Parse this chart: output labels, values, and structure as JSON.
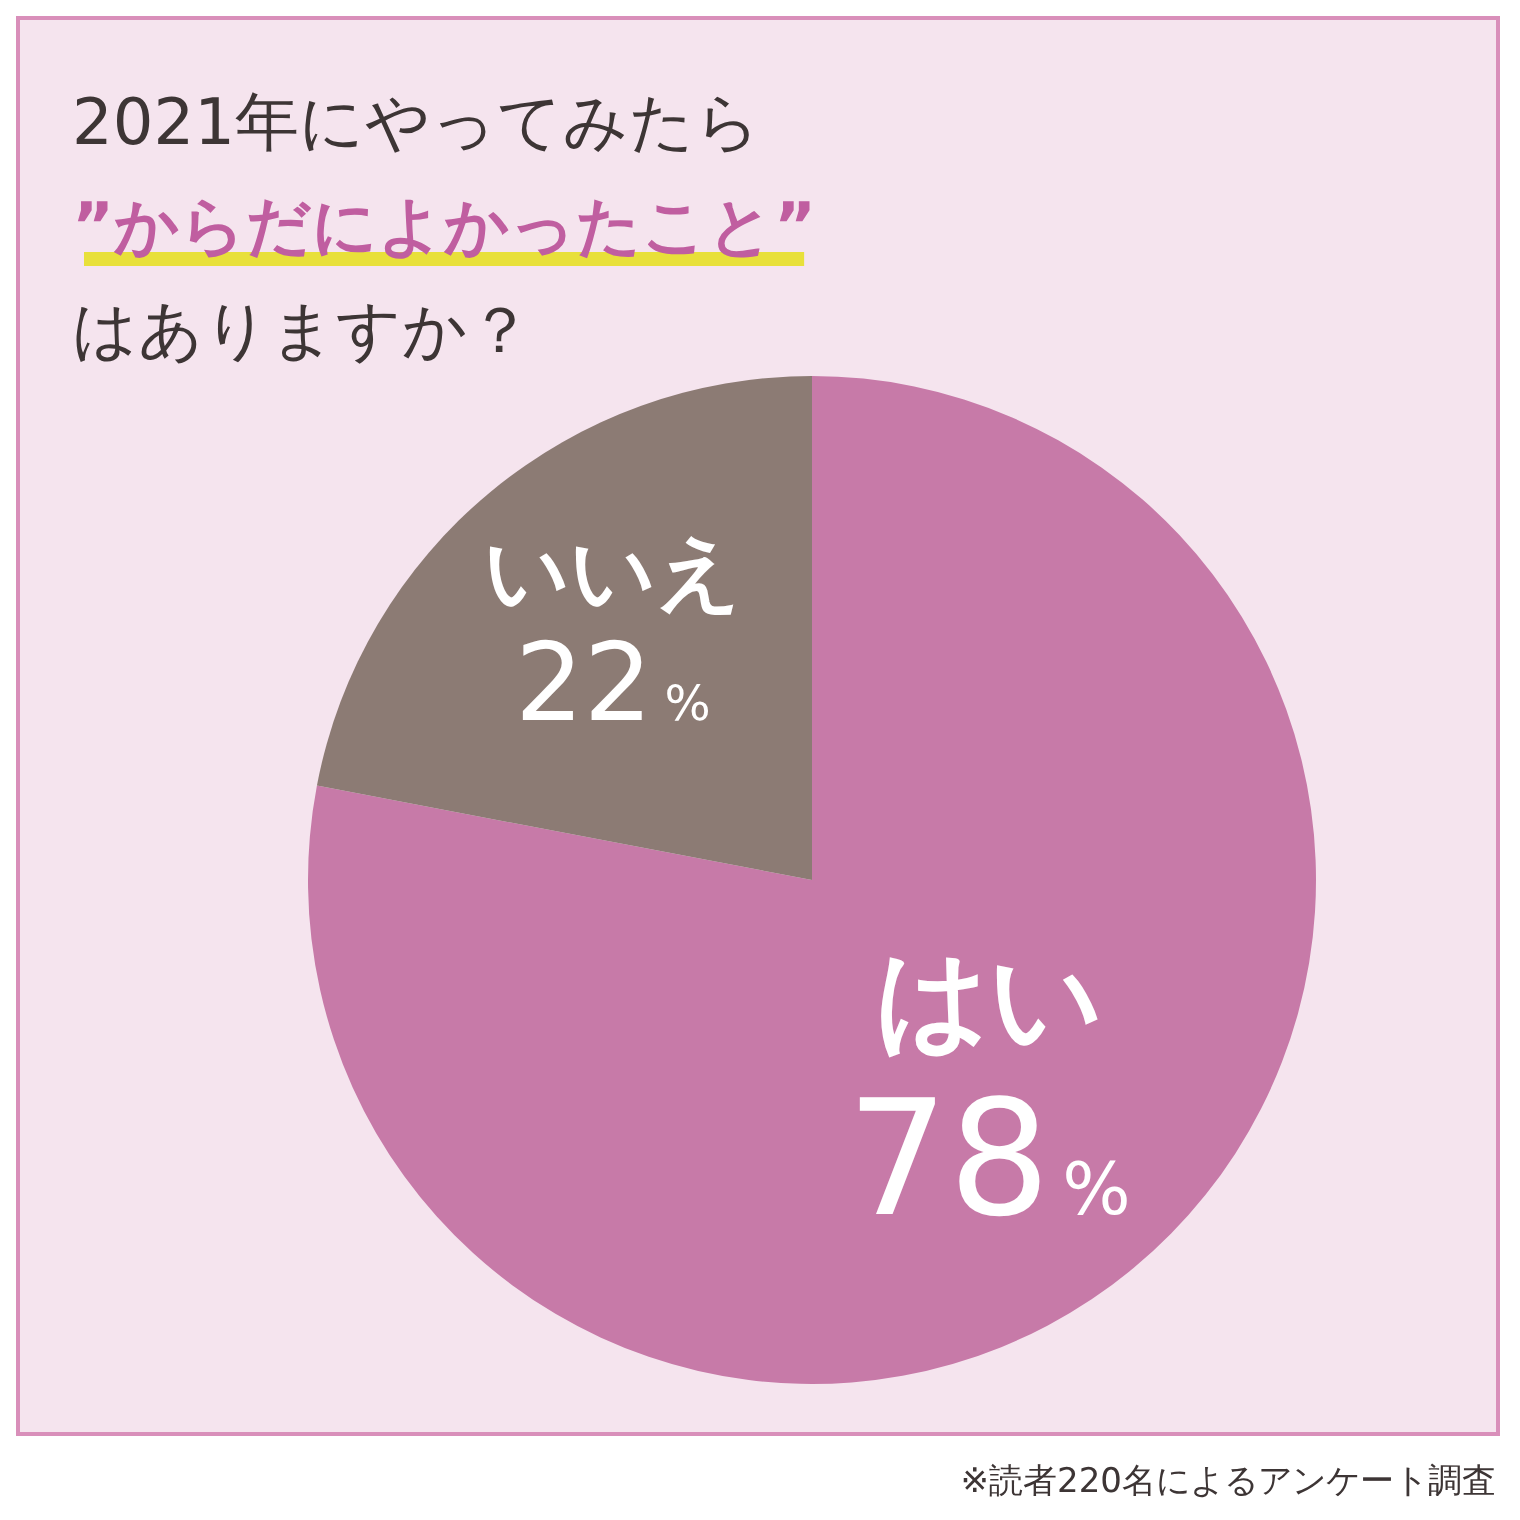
{
  "chart_data": {
    "type": "pie",
    "title": "2021年にやってみたら\n”からだによかったこと”\nはありますか？",
    "categories": [
      "はい",
      "いいえ"
    ],
    "values": [
      78,
      22
    ],
    "colors": [
      "#c77aa8",
      "#8c7b74"
    ],
    "value_labels": [
      "78%",
      "22%"
    ],
    "annotations": [
      "※読者220名によるアンケート調査"
    ]
  }
}
